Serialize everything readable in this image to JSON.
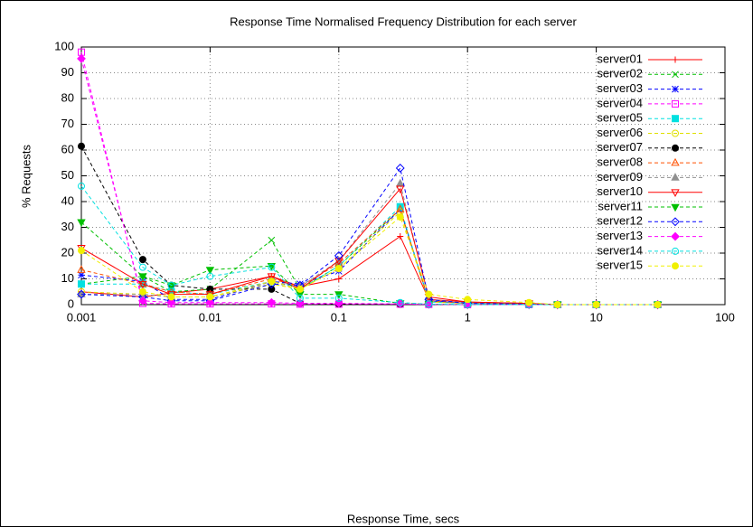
{
  "chart_data": {
    "type": "line",
    "title": "Response Time Normalised Frequency Distribution for each server",
    "xlabel": "Response Time, secs",
    "ylabel": "% Requests",
    "log_x": true,
    "grid": true,
    "legend": "top-right",
    "x": [
      0.001,
      0.003,
      0.005,
      0.01,
      0.03,
      0.05,
      0.1,
      0.3,
      0.5,
      1,
      3,
      5,
      10,
      30
    ],
    "xlim": [
      0.001,
      100
    ],
    "xticks": [
      0.001,
      0.01,
      0.1,
      1,
      10,
      100
    ],
    "ylim": [
      0,
      100
    ],
    "yticks": [
      0,
      10,
      20,
      30,
      40,
      50,
      60,
      70,
      80,
      90,
      100
    ],
    "series": [
      {
        "name": "server01",
        "color": "#ff0000",
        "dashed": false,
        "marker": "plus",
        "values": [
          5,
          3,
          4.5,
          6,
          11,
          7,
          10,
          26.5,
          2,
          1,
          0.5,
          0,
          0,
          0
        ]
      },
      {
        "name": "server02",
        "color": "#00c000",
        "dashed": true,
        "marker": "cross",
        "values": [
          8,
          11,
          5,
          6,
          25,
          6,
          15,
          37,
          1.5,
          0.5,
          0.3,
          0,
          0,
          0
        ]
      },
      {
        "name": "server03",
        "color": "#0000ff",
        "dashed": true,
        "marker": "star",
        "values": [
          11.5,
          9,
          2,
          2,
          9,
          8,
          13,
          37,
          1.5,
          0.5,
          0.2,
          0,
          0,
          0
        ]
      },
      {
        "name": "server04",
        "color": "#ff00ff",
        "dashed": true,
        "marker": "square",
        "values": [
          98,
          0.5,
          0.3,
          0.3,
          0.3,
          0.2,
          0.2,
          0.2,
          0.1,
          0,
          0,
          0,
          0,
          0
        ]
      },
      {
        "name": "server05",
        "color": "#00e0e0",
        "dashed": true,
        "marker": "filled-square",
        "values": [
          8,
          8,
          5,
          4,
          9,
          6,
          15,
          38,
          1,
          0.5,
          0.2,
          0,
          0,
          0
        ]
      },
      {
        "name": "server06",
        "color": "#e0e000",
        "dashed": true,
        "marker": "circle",
        "values": [
          5,
          4,
          3,
          3,
          8,
          6,
          14,
          36,
          1,
          0.5,
          0.2,
          0,
          0,
          0
        ]
      },
      {
        "name": "server07",
        "color": "#000000",
        "dashed": true,
        "marker": "filled-circle",
        "values": [
          61.5,
          17.5,
          7.5,
          6,
          6,
          0.5,
          0.3,
          0.2,
          0.1,
          0,
          0,
          0,
          0,
          0
        ]
      },
      {
        "name": "server08",
        "color": "#ff5000",
        "dashed": true,
        "marker": "triangle",
        "values": [
          13.5,
          8,
          5,
          4,
          10,
          7,
          16,
          37,
          1.5,
          0.5,
          0.3,
          0,
          0,
          0
        ]
      },
      {
        "name": "server09",
        "color": "#909090",
        "dashed": true,
        "marker": "filled-triangle",
        "values": [
          4,
          4,
          3,
          3,
          9,
          7,
          17,
          47,
          2,
          0.7,
          0.3,
          0,
          0,
          0
        ]
      },
      {
        "name": "server10",
        "color": "#ff0000",
        "dashed": false,
        "marker": "triangle-down",
        "values": [
          22,
          8,
          4,
          4,
          11,
          6,
          17,
          45,
          3,
          1,
          0.5,
          0,
          0,
          0
        ]
      },
      {
        "name": "server11",
        "color": "#00c000",
        "dashed": true,
        "marker": "filled-triangle-down",
        "values": [
          32,
          11,
          7.5,
          13.5,
          15,
          4,
          4,
          0.5,
          0.2,
          0,
          0,
          0,
          0,
          0
        ]
      },
      {
        "name": "server12",
        "color": "#0000ff",
        "dashed": true,
        "marker": "diamond",
        "values": [
          4,
          3,
          1.5,
          1.5,
          8,
          7.5,
          19,
          53,
          2,
          0.5,
          0.2,
          0,
          0,
          0
        ]
      },
      {
        "name": "server13",
        "color": "#ff00ff",
        "dashed": true,
        "marker": "filled-diamond",
        "values": [
          95.5,
          1.5,
          0.8,
          0.8,
          0.8,
          0.5,
          0.5,
          0.3,
          0.1,
          0,
          0,
          0,
          0,
          0
        ]
      },
      {
        "name": "server14",
        "color": "#00e0e0",
        "dashed": true,
        "marker": "circle",
        "values": [
          46,
          14.5,
          7.5,
          11,
          14.5,
          2.5,
          2.5,
          0.8,
          0.2,
          0,
          0,
          0,
          0,
          0
        ]
      },
      {
        "name": "server15",
        "color": "#f0f000",
        "dashed": true,
        "marker": "filled-circle",
        "values": [
          21,
          5,
          3,
          3,
          9,
          6,
          14,
          34,
          4,
          2,
          0.8,
          0,
          0,
          0
        ]
      }
    ]
  }
}
